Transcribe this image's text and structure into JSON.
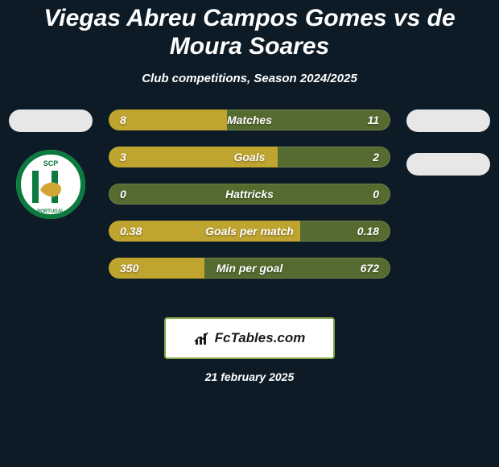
{
  "page": {
    "background_color": "#0d1b26",
    "text_color": "#ffffff",
    "title": "Viegas Abreu Campos Gomes vs de Moura Soares",
    "title_fontsize": 30,
    "subtitle": "Club competitions, Season 2024/2025",
    "subtitle_fontsize": 15,
    "date": "21 february 2025",
    "date_fontsize": 14
  },
  "comparison": {
    "bar_empty_color": "#556b2f",
    "bar_fill_color": "#c0a430",
    "bar_label_color": "#ffffff",
    "bar_label_fontsize": 14,
    "bar_value_fontsize": 14,
    "rows": [
      {
        "label": "Matches",
        "left": "8",
        "right": "11",
        "left_ratio": 0.42
      },
      {
        "label": "Goals",
        "left": "3",
        "right": "2",
        "left_ratio": 0.6
      },
      {
        "label": "Hattricks",
        "left": "0",
        "right": "0",
        "left_ratio": 0.0
      },
      {
        "label": "Goals per match",
        "left": "0.38",
        "right": "0.18",
        "left_ratio": 0.68
      },
      {
        "label": "Min per goal",
        "left": "350",
        "right": "672",
        "left_ratio": 0.34
      }
    ]
  },
  "badges": {
    "oval_color": "#e7e7e7",
    "left_crest": {
      "bg": "#ffffff",
      "ring": "#0a7a3f",
      "stripes_a": "#0a7a3f",
      "stripes_b": "#ffffff",
      "lion": "#d1a632",
      "text": "SCP",
      "sub": "PORTUGAL"
    }
  },
  "brand": {
    "box_bg": "#ffffff",
    "box_border": "#84a544",
    "text": "FcTables.com",
    "text_color": "#1b1b1b",
    "text_fontsize": 17,
    "icon_color": "#1b1b1b"
  }
}
